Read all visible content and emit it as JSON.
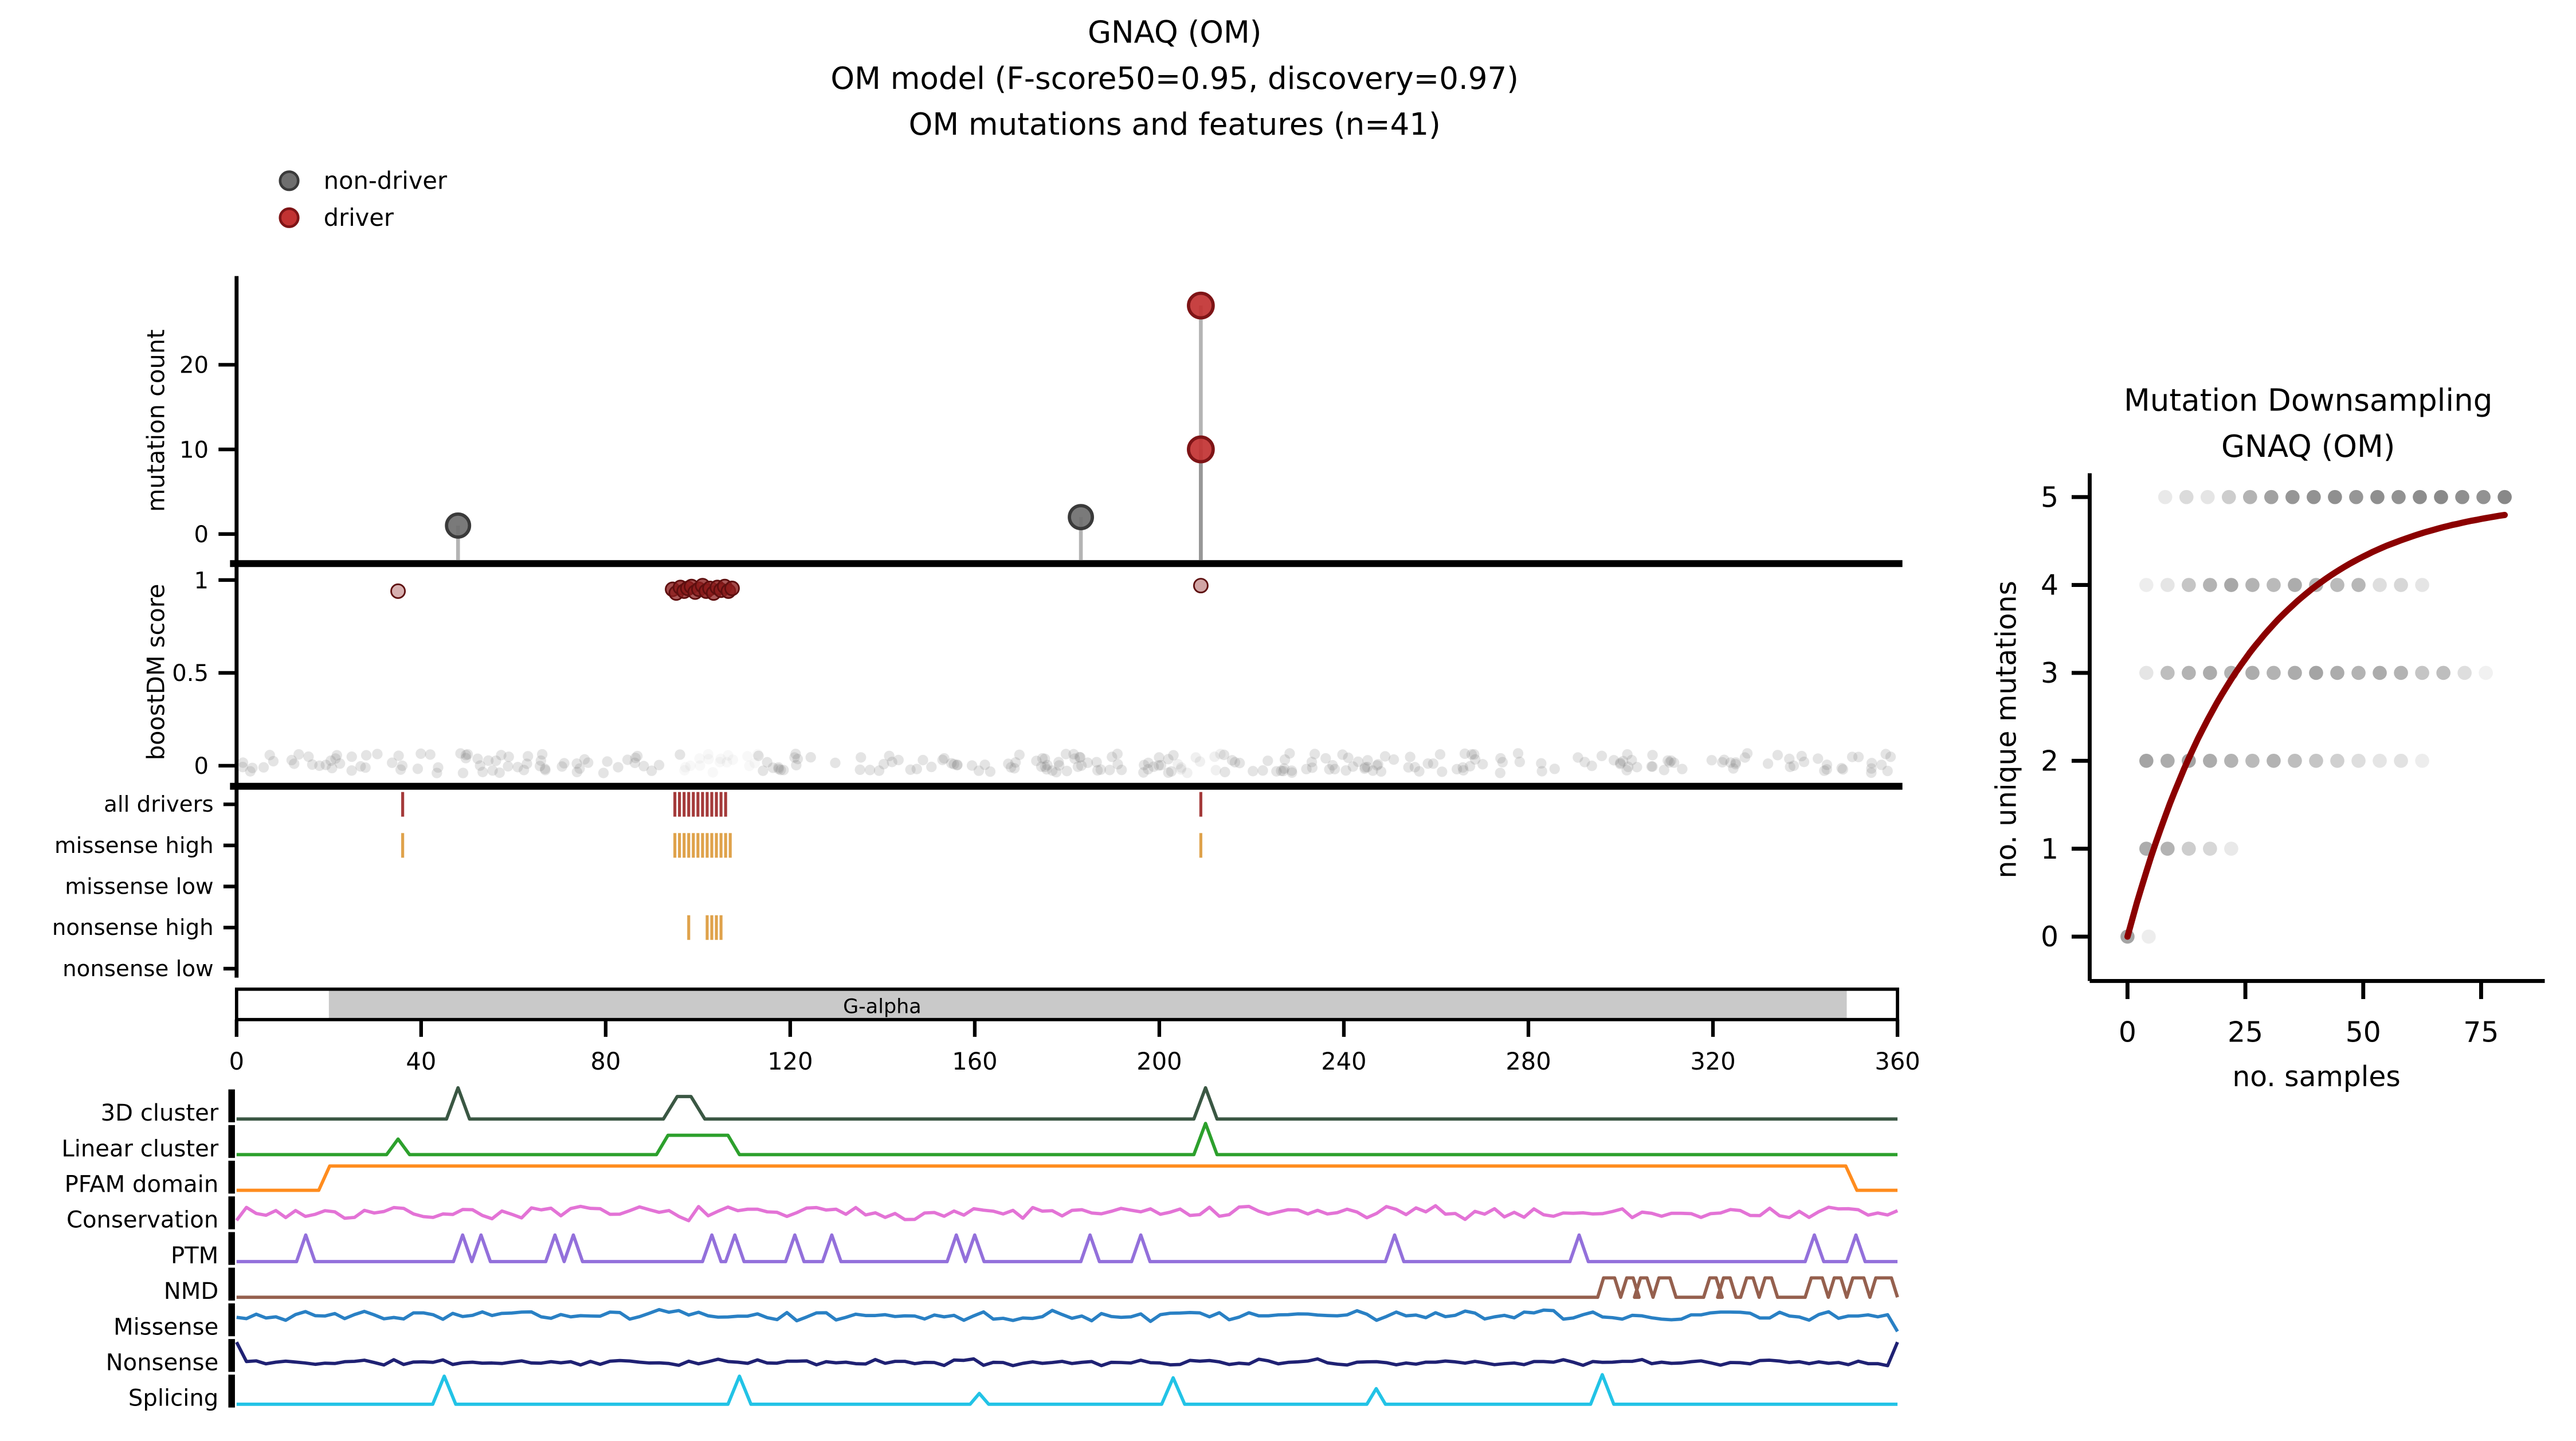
{
  "figure": {
    "title_lines": [
      "GNAQ (OM)",
      "OM model (F-score50=0.95, discovery=0.97)",
      "OM mutations and features (n=41)"
    ]
  },
  "legend": {
    "items": [
      {
        "label": "non-driver",
        "fill": "#6f6f6f",
        "edge": "#3a3a3a"
      },
      {
        "label": "driver",
        "fill": "#c23232",
        "edge": "#7e1416"
      }
    ]
  },
  "chart_data": [
    {
      "id": "om-mutations-and-features",
      "type": "composite",
      "gene": "GNAQ",
      "cohort": "OM",
      "x_axis": {
        "range": [
          0,
          360
        ],
        "ticks": [
          0,
          40,
          80,
          120,
          160,
          200,
          240,
          280,
          320,
          360
        ]
      },
      "mutation_count_panel": {
        "ylabel": "mutation count",
        "yticks": [
          0,
          10,
          20
        ],
        "lollipops": [
          {
            "pos": 48,
            "count": 1,
            "class": "non-driver"
          },
          {
            "pos": 183,
            "count": 2,
            "class": "non-driver"
          },
          {
            "pos": 209,
            "count": 10,
            "class": "driver"
          },
          {
            "pos": 209,
            "count": 27,
            "class": "driver"
          }
        ],
        "point_style": {
          "non-driver": {
            "fill": "#6f6f6f",
            "edge": "#3a3a3a"
          },
          "driver": {
            "fill": "#c23232",
            "edge": "#7e1416"
          }
        }
      },
      "boostdm_panel": {
        "ylabel": "boostDM score",
        "yticks": [
          0,
          0.5,
          1
        ],
        "driver_color": "#8c1d1d",
        "driver_edge": "#5e0f0f",
        "driver_points": [
          [
            35,
            0.94,
            0.35
          ],
          [
            94.5,
            0.95,
            0.8
          ],
          [
            95.3,
            0.93,
            0.75
          ],
          [
            96.2,
            0.96,
            0.85
          ],
          [
            97,
            0.94,
            0.8
          ],
          [
            97.8,
            0.955,
            0.9
          ],
          [
            98.6,
            0.965,
            0.8
          ],
          [
            99.4,
            0.935,
            0.75
          ],
          [
            100.2,
            0.95,
            0.85
          ],
          [
            101,
            0.97,
            0.8
          ],
          [
            101.8,
            0.94,
            0.9
          ],
          [
            102.6,
            0.955,
            0.8
          ],
          [
            103.4,
            0.93,
            0.75
          ],
          [
            104.2,
            0.96,
            0.85
          ],
          [
            105,
            0.945,
            0.8
          ],
          [
            105.8,
            0.965,
            0.75
          ],
          [
            106.6,
            0.94,
            0.85
          ],
          [
            107.4,
            0.955,
            0.8
          ],
          [
            209,
            0.97,
            0.4
          ]
        ],
        "nondriver_band": {
          "color": "#7a7a7a",
          "n": 300,
          "score_band": [
            0.0,
            0.05
          ],
          "alpha": 0.2,
          "seed": 42,
          "faded_regions": [
            [
              97,
              113,
              0.25
            ],
            [
              204,
              214,
              0.55
            ]
          ]
        }
      },
      "tick_rows": [
        {
          "label": "all drivers",
          "color": "#a43a3a",
          "positions": [
            36,
            95,
            96,
            97,
            98,
            99,
            100,
            101,
            102,
            103,
            104,
            105,
            106,
            209
          ]
        },
        {
          "label": "missense high",
          "color": "#dfa24b",
          "positions": [
            36,
            95,
            96,
            97,
            98,
            99,
            100,
            101,
            102,
            103,
            104,
            105,
            106,
            107,
            209
          ]
        },
        {
          "label": "missense low",
          "color": "#dfa24b",
          "positions": []
        },
        {
          "label": "nonsense high",
          "color": "#dfa24b",
          "positions": [
            98,
            102,
            103,
            104,
            105
          ]
        },
        {
          "label": "nonsense low",
          "color": "#dfa24b",
          "positions": []
        }
      ],
      "domain_track": {
        "protein_length": 360,
        "bar_fill": "#ffffff",
        "domains": [
          {
            "name": "G-alpha",
            "start": 20,
            "end": 349,
            "fill": "#c9c9c9",
            "label_x": 140
          }
        ]
      },
      "feature_tracks": [
        {
          "label": "3D cluster",
          "color": "#3a5743",
          "render": "shapes",
          "shapes": [
            {
              "kind": "spike",
              "pos": 48,
              "h": 1,
              "w": 5
            },
            {
              "kind": "spike",
              "pos": 97,
              "h": 0.72,
              "w": 9,
              "flat": 3
            },
            {
              "kind": "spike",
              "pos": 210,
              "h": 1,
              "w": 5
            }
          ]
        },
        {
          "label": "Linear cluster",
          "color": "#2ca02c",
          "render": "shapes",
          "shapes": [
            {
              "kind": "spike",
              "pos": 35,
              "h": 0.5,
              "w": 5
            },
            {
              "kind": "plateau",
              "start": 93,
              "end": 107,
              "h": 0.62
            },
            {
              "kind": "spike",
              "pos": 210,
              "h": 1,
              "w": 5
            }
          ]
        },
        {
          "label": "PFAM domain",
          "color": "#ff8c1e",
          "render": "step",
          "levels": [
            [
              0,
              19,
              0
            ],
            [
              19,
              350,
              0.78
            ],
            [
              350,
              360,
              0
            ]
          ]
        },
        {
          "label": "Conservation",
          "color": "#e373d6",
          "render": "noise",
          "noise": {
            "mean": 0.42,
            "amp": 0.26,
            "seed": 7,
            "points": 170
          }
        },
        {
          "label": "PTM",
          "color": "#9370db",
          "render": "shapes",
          "shapes": [
            {
              "kind": "spike",
              "pos": 15,
              "h": 0.85,
              "w": 4
            },
            {
              "kind": "spike",
              "pos": 49,
              "h": 0.85,
              "w": 4
            },
            {
              "kind": "spike",
              "pos": 53,
              "h": 0.85,
              "w": 4
            },
            {
              "kind": "spike",
              "pos": 69,
              "h": 0.85,
              "w": 4
            },
            {
              "kind": "spike",
              "pos": 73,
              "h": 0.85,
              "w": 4
            },
            {
              "kind": "spike",
              "pos": 103,
              "h": 0.85,
              "w": 4
            },
            {
              "kind": "spike",
              "pos": 108,
              "h": 0.85,
              "w": 4
            },
            {
              "kind": "spike",
              "pos": 121,
              "h": 0.85,
              "w": 4
            },
            {
              "kind": "spike",
              "pos": 129,
              "h": 0.85,
              "w": 4
            },
            {
              "kind": "spike",
              "pos": 156,
              "h": 0.85,
              "w": 4
            },
            {
              "kind": "spike",
              "pos": 160,
              "h": 0.85,
              "w": 4
            },
            {
              "kind": "spike",
              "pos": 185,
              "h": 0.85,
              "w": 4
            },
            {
              "kind": "spike",
              "pos": 196,
              "h": 0.85,
              "w": 4
            },
            {
              "kind": "spike",
              "pos": 251,
              "h": 0.85,
              "w": 4
            },
            {
              "kind": "spike",
              "pos": 291,
              "h": 0.85,
              "w": 4
            },
            {
              "kind": "spike",
              "pos": 342,
              "h": 0.85,
              "w": 4
            },
            {
              "kind": "spike",
              "pos": 351,
              "h": 0.85,
              "w": 4
            }
          ]
        },
        {
          "label": "NMD",
          "color": "#95604e",
          "render": "pulses",
          "pulse_h": 0.62,
          "pulses": [
            [
              296,
              299
            ],
            [
              301,
              303
            ],
            [
              304,
              306
            ],
            [
              308,
              311
            ],
            [
              319,
              321
            ],
            [
              322,
              324
            ],
            [
              327,
              329
            ],
            [
              331,
              333
            ],
            [
              341,
              344
            ],
            [
              346,
              348
            ],
            [
              350,
              353
            ],
            [
              355,
              359
            ]
          ]
        },
        {
          "label": "Missense",
          "color": "#2980c4",
          "render": "noise",
          "noise": {
            "mean": 0.55,
            "amp": 0.2,
            "seed": 3,
            "points": 170,
            "end_h": 0.05
          }
        },
        {
          "label": "Nonsense",
          "color": "#1f2173",
          "render": "noise",
          "noise": {
            "mean": 0.2,
            "amp": 0.12,
            "seed": 11,
            "points": 170,
            "start_h": 0.85,
            "end_h": 0.85
          }
        },
        {
          "label": "Splicing",
          "color": "#22c3e6",
          "render": "shapes",
          "shapes": [
            {
              "kind": "spike",
              "pos": 45,
              "h": 0.9,
              "w": 5
            },
            {
              "kind": "spike",
              "pos": 109,
              "h": 0.9,
              "w": 5
            },
            {
              "kind": "spike",
              "pos": 161,
              "h": 0.35,
              "w": 4
            },
            {
              "kind": "spike",
              "pos": 203,
              "h": 0.85,
              "w": 5
            },
            {
              "kind": "spike",
              "pos": 247,
              "h": 0.5,
              "w": 4
            },
            {
              "kind": "spike",
              "pos": 296,
              "h": 0.95,
              "w": 5
            }
          ]
        }
      ]
    },
    {
      "id": "mutation-downsampling",
      "type": "scatter-curve",
      "title_lines": [
        "Mutation Downsampling",
        "GNAQ (OM)"
      ],
      "xlabel": "no. samples",
      "ylabel": "no. unique mutations",
      "xticks": [
        0,
        25,
        50,
        75
      ],
      "yticks": [
        0,
        1,
        2,
        3,
        4,
        5
      ],
      "xlim": [
        0,
        84
      ],
      "ylim": [
        0,
        5.4
      ],
      "curve": {
        "color": "#8b0000",
        "model": "y = 5 * (1 - exp(-x/25))",
        "ymax": 5,
        "tau": 25,
        "x_end": 80
      },
      "dot_color": "#4a4a4a",
      "dot_rows": [
        {
          "y": 5,
          "x": [
            8,
            12.5,
            17,
            21.5,
            26,
            30.5,
            35,
            39.5,
            44,
            48.5,
            53,
            57.5,
            62,
            66.5,
            71,
            75.5,
            80
          ],
          "alpha": [
            0.12,
            0.2,
            0.14,
            0.28,
            0.42,
            0.52,
            0.58,
            0.6,
            0.62,
            0.58,
            0.62,
            0.6,
            0.63,
            0.65,
            0.62,
            0.6,
            0.66
          ]
        },
        {
          "y": 4,
          "x": [
            4,
            8.5,
            13,
            17.5,
            22,
            26.5,
            31,
            35.5,
            40,
            44.5,
            49,
            53.5,
            58,
            62.5
          ],
          "alpha": [
            0.1,
            0.14,
            0.32,
            0.42,
            0.48,
            0.42,
            0.38,
            0.46,
            0.42,
            0.38,
            0.4,
            0.18,
            0.22,
            0.14
          ]
        },
        {
          "y": 3,
          "x": [
            4,
            8.5,
            13,
            17.5,
            22,
            26.5,
            31,
            35.5,
            40,
            44.5,
            49,
            53.5,
            58,
            62.5,
            67,
            71.5,
            76
          ],
          "alpha": [
            0.14,
            0.36,
            0.42,
            0.46,
            0.42,
            0.46,
            0.42,
            0.46,
            0.5,
            0.46,
            0.42,
            0.46,
            0.42,
            0.32,
            0.36,
            0.18,
            0.08
          ]
        },
        {
          "y": 2,
          "x": [
            4,
            8.5,
            13,
            17.5,
            22,
            26.5,
            31,
            35.5,
            40,
            44.5,
            49,
            53.5,
            58,
            62.5
          ],
          "alpha": [
            0.5,
            0.46,
            0.5,
            0.46,
            0.42,
            0.38,
            0.42,
            0.36,
            0.32,
            0.26,
            0.18,
            0.14,
            0.16,
            0.1
          ]
        },
        {
          "y": 1,
          "x": [
            4,
            8.5,
            13,
            17.5,
            22
          ],
          "alpha": [
            0.46,
            0.42,
            0.28,
            0.22,
            0.12
          ]
        },
        {
          "y": 0,
          "x": [
            0,
            4.5
          ],
          "alpha": [
            0.5,
            0.1
          ]
        }
      ]
    }
  ]
}
